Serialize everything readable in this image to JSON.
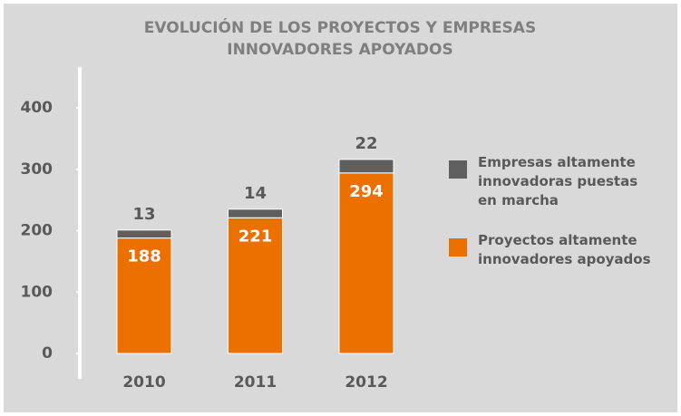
{
  "chart_data": {
    "type": "stacked_bar",
    "title": [
      "EVOLUCIÓN DE LOS PROYECTOS Y EMPRESAS",
      "INNOVADORES APOYADOS"
    ],
    "categories": [
      "2010",
      "2011",
      "2012"
    ],
    "series": [
      {
        "name": "Proyectos altamente innovadores apoyados",
        "color": "#ec7000",
        "values": [
          188,
          221,
          294
        ]
      },
      {
        "name": "Empresas altamente innovadoras puestas en marcha",
        "color": "#5f5f5f",
        "values": [
          13,
          14,
          22
        ]
      }
    ],
    "ylim": [
      0,
      400
    ],
    "yticks": [
      0,
      100,
      200,
      300,
      400
    ],
    "grid": false,
    "legend": "right"
  }
}
